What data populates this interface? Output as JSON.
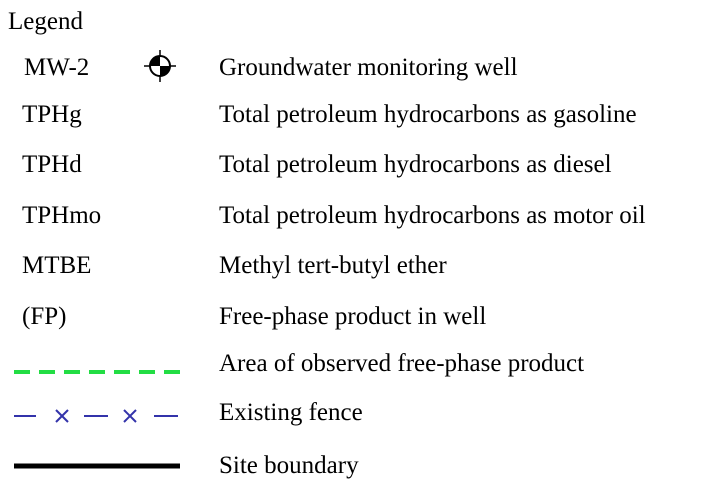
{
  "title": "Legend",
  "entries": [
    {
      "abbr": "MW-2",
      "description": "Groundwater monitoring well"
    },
    {
      "abbr": "TPHg",
      "description": "Total petroleum hydrocarbons as gasoline"
    },
    {
      "abbr": "TPHd",
      "description": "Total petroleum hydrocarbons as diesel"
    },
    {
      "abbr": "TPHmo",
      "description": "Total petroleum hydrocarbons as motor oil"
    },
    {
      "abbr": "MTBE",
      "description": "Methyl tert-butyl ether"
    },
    {
      "abbr": "(FP)",
      "description": "Free-phase product in well"
    },
    {
      "description": "Area of observed free-phase product"
    },
    {
      "description": "Existing fence"
    },
    {
      "description": "Site boundary"
    }
  ]
}
